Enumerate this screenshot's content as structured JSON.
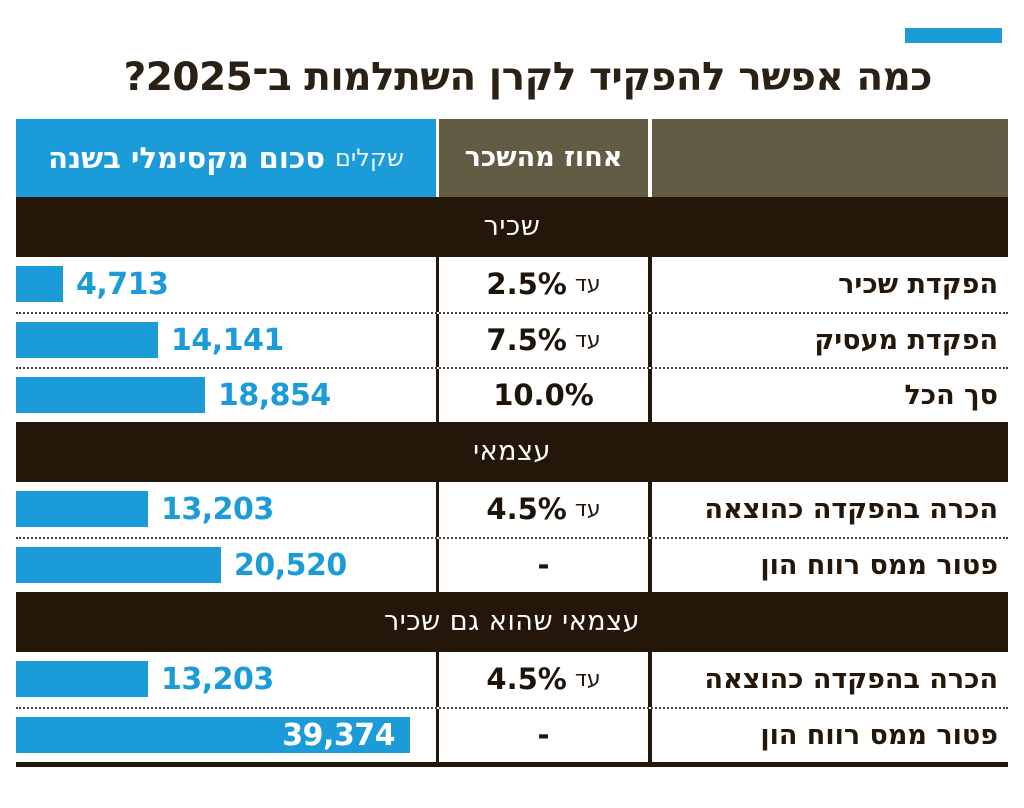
{
  "page": {
    "title": "כמה אפשר להפקיד לקרן השתלמות ב־2025?"
  },
  "table": {
    "header": {
      "amount_title": "סכום מקסימלי בשנה",
      "amount_unit": "שקלים",
      "percent_title": "אחוז מהשכר"
    },
    "sections": [
      {
        "title": "שכיר",
        "rows": [
          {
            "label": "הפקדת שכיר",
            "prefix": "עד",
            "percent": "2.5%",
            "amount": "4,713",
            "value": 4713
          },
          {
            "label": "הפקדת מעסיק",
            "prefix": "עד",
            "percent": "7.5%",
            "amount": "14,141",
            "value": 14141
          },
          {
            "label": "סך הכל",
            "prefix": "",
            "percent": "10.0%",
            "amount": "18,854",
            "value": 18854
          }
        ]
      },
      {
        "title": "עצמאי",
        "rows": [
          {
            "label": "הכרה בהפקדה כהוצאה",
            "prefix": "עד",
            "percent": "4.5%",
            "amount": "13,203",
            "value": 13203
          },
          {
            "label": "פטור ממס רווח הון",
            "prefix": "",
            "percent": "-",
            "amount": "20,520",
            "value": 20520
          }
        ]
      },
      {
        "title": "עצמאי שהוא גם שכיר",
        "rows": [
          {
            "label": "הכרה בהפקדה כהוצאה",
            "prefix": "עד",
            "percent": "4.5%",
            "amount": "13,203",
            "value": 13203
          },
          {
            "label": "פטור ממס רווח הון",
            "prefix": "",
            "percent": "-",
            "amount": "39,374",
            "value": 39374
          }
        ]
      }
    ]
  },
  "colors": {
    "accent_blue": "#1b9cd8",
    "olive_header": "#615c43",
    "dark_brown": "#241709"
  },
  "chart_data": {
    "type": "bar",
    "orientation": "horizontal",
    "title": "כמה אפשר להפקיד לקרן השתלמות ב־2025?",
    "value_axis_label": "סכום מקסימלי בשנה (שקלים)",
    "secondary_column_label": "אחוז מהשכר",
    "max_value": 39374,
    "bar_color": "#1b9cd8",
    "groups": [
      {
        "name": "שכיר",
        "categories": [
          "הפקדת שכיר",
          "הפקדת מעסיק",
          "סך הכל"
        ],
        "percent_of_salary": [
          "עד 2.5%",
          "עד 7.5%",
          "10.0%"
        ],
        "values": [
          4713,
          14141,
          18854
        ]
      },
      {
        "name": "עצמאי",
        "categories": [
          "הכרה בהפקדה כהוצאה",
          "פטור ממס רווח הון"
        ],
        "percent_of_salary": [
          "עד 4.5%",
          "-"
        ],
        "values": [
          13203,
          20520
        ]
      },
      {
        "name": "עצמאי שהוא גם שכיר",
        "categories": [
          "הכרה בהפקדה כהוצאה",
          "פטור ממס רווח הון"
        ],
        "percent_of_salary": [
          "עד 4.5%",
          "-"
        ],
        "values": [
          13203,
          39374
        ]
      }
    ]
  }
}
